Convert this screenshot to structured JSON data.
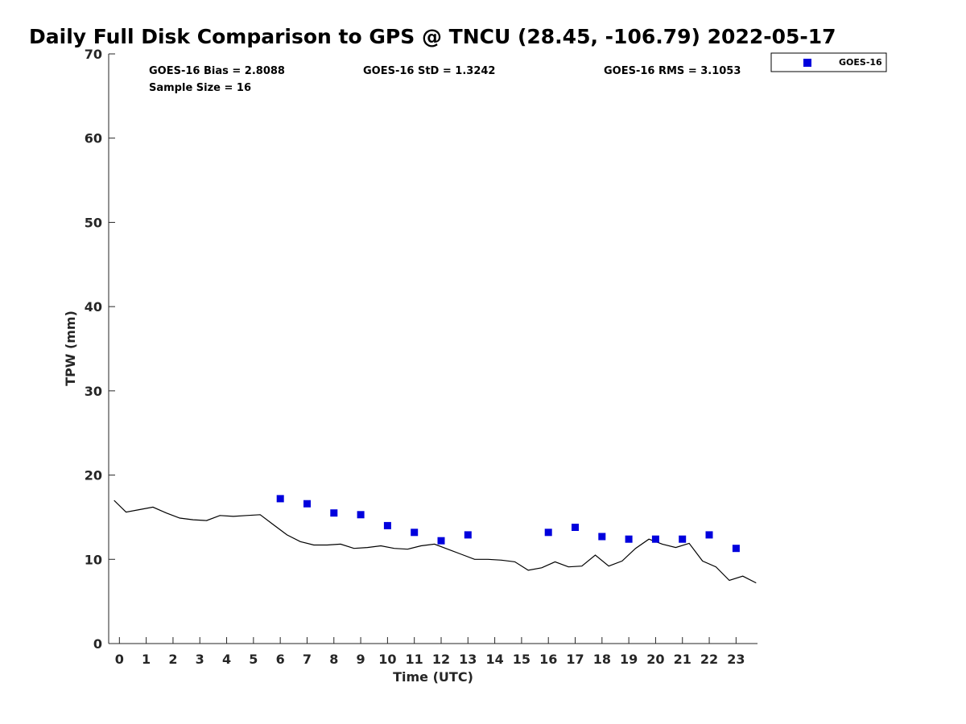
{
  "chart_data": {
    "type": "scatter",
    "title": "Daily Full Disk Comparison to GPS @ TNCU (28.45, -106.79) 2022-05-17",
    "xlabel": "Time (UTC)",
    "ylabel": "TPW (mm)",
    "xlim": [
      -0.4,
      23.8
    ],
    "ylim": [
      0,
      70
    ],
    "x_ticks": [
      0,
      1,
      2,
      3,
      4,
      5,
      6,
      7,
      8,
      9,
      10,
      11,
      12,
      13,
      14,
      15,
      16,
      17,
      18,
      19,
      20,
      21,
      22,
      23
    ],
    "y_ticks": [
      0,
      10,
      20,
      30,
      40,
      50,
      60,
      70
    ],
    "grid": false,
    "legend_position": "top-right, outside plot",
    "stats": {
      "bias": "GOES-16 Bias = 2.8088",
      "std": "GOES-16 StD = 1.3242",
      "rms": "GOES-16 RMS = 3.1053",
      "sample_size": "Sample Size = 16"
    },
    "series": [
      {
        "name": "GOES-16",
        "kind": "scatter",
        "marker": "square",
        "color": "#0000dd",
        "x": [
          6,
          7,
          8,
          9,
          10,
          11,
          12,
          13,
          16,
          17,
          18,
          19,
          20,
          21,
          22,
          23
        ],
        "y": [
          17.2,
          16.6,
          15.5,
          15.3,
          14.0,
          13.2,
          12.2,
          12.9,
          13.2,
          13.8,
          12.7,
          12.4,
          12.4,
          12.4,
          12.9,
          11.3
        ]
      },
      {
        "kind": "line",
        "color": "#000000",
        "x": [
          -0.2,
          0.25,
          0.75,
          1.25,
          1.75,
          2.25,
          2.75,
          3.25,
          3.75,
          4.25,
          4.75,
          5.25,
          5.75,
          6.25,
          6.75,
          7.25,
          7.75,
          8.25,
          8.75,
          9.25,
          9.75,
          10.25,
          10.75,
          11.25,
          11.75,
          12.25,
          12.75,
          13.25,
          13.75,
          14.25,
          14.75,
          15.25,
          15.75,
          16.25,
          16.75,
          17.25,
          17.75,
          18.25,
          18.75,
          19.25,
          19.75,
          20.25,
          20.75,
          21.25,
          21.75,
          22.25,
          22.75,
          23.25,
          23.75
        ],
        "y": [
          17.0,
          15.6,
          15.9,
          16.2,
          15.5,
          14.9,
          14.7,
          14.6,
          15.2,
          15.1,
          15.2,
          15.3,
          14.1,
          12.9,
          12.1,
          11.7,
          11.7,
          11.8,
          11.3,
          11.4,
          11.6,
          11.3,
          11.2,
          11.6,
          11.8,
          11.2,
          10.6,
          10.0,
          10.0,
          9.9,
          9.7,
          8.7,
          9.0,
          9.7,
          9.1,
          9.2,
          10.5,
          9.2,
          9.8,
          11.3,
          12.4,
          11.8,
          11.4,
          11.9,
          9.8,
          9.1,
          7.5,
          8.0,
          7.2
        ]
      }
    ]
  },
  "legend": {
    "label": "GOES-16",
    "marker_color": "#0000dd"
  }
}
